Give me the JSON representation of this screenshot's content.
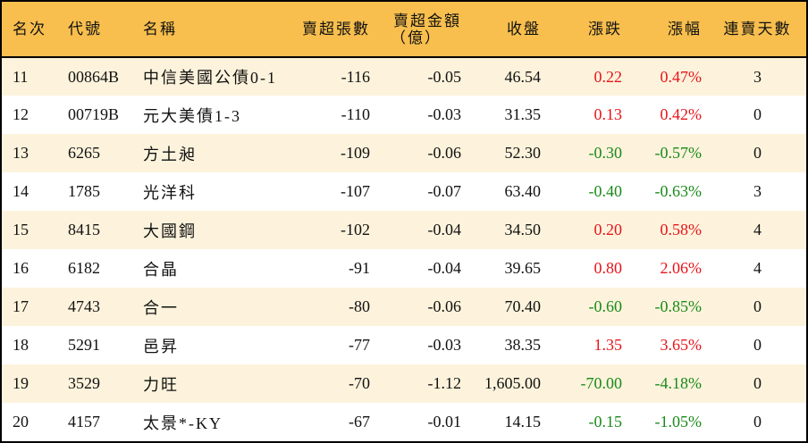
{
  "table": {
    "headers": {
      "rank": "名次",
      "code": "代號",
      "name": "名稱",
      "net_sell_volume": "賣超張數",
      "net_sell_amount_line1": "賣超金額",
      "net_sell_amount_line2": "（億）",
      "close": "收盤",
      "change": "漲跌",
      "change_pct": "漲幅",
      "consecutive_days": "連賣天數"
    },
    "colors": {
      "up": "#E8141B",
      "down": "#1A8A1A",
      "header_bg": "#F8BF4E",
      "row_alt_bg": "#FDF3DC"
    },
    "rows": [
      {
        "rank": "11",
        "code": "00864B",
        "name": "中信美國公債0-1",
        "volume": "-116",
        "amount": "-0.05",
        "close": "46.54",
        "change": "0.22",
        "pct": "0.47%",
        "days": "3",
        "dir": "up"
      },
      {
        "rank": "12",
        "code": "00719B",
        "name": "元大美債1-3",
        "volume": "-110",
        "amount": "-0.03",
        "close": "31.35",
        "change": "0.13",
        "pct": "0.42%",
        "days": "0",
        "dir": "up"
      },
      {
        "rank": "13",
        "code": "6265",
        "name": "方土昶",
        "volume": "-109",
        "amount": "-0.06",
        "close": "52.30",
        "change": "-0.30",
        "pct": "-0.57%",
        "days": "0",
        "dir": "down"
      },
      {
        "rank": "14",
        "code": "1785",
        "name": "光洋科",
        "volume": "-107",
        "amount": "-0.07",
        "close": "63.40",
        "change": "-0.40",
        "pct": "-0.63%",
        "days": "3",
        "dir": "down"
      },
      {
        "rank": "15",
        "code": "8415",
        "name": "大國鋼",
        "volume": "-102",
        "amount": "-0.04",
        "close": "34.50",
        "change": "0.20",
        "pct": "0.58%",
        "days": "4",
        "dir": "up"
      },
      {
        "rank": "16",
        "code": "6182",
        "name": "合晶",
        "volume": "-91",
        "amount": "-0.04",
        "close": "39.65",
        "change": "0.80",
        "pct": "2.06%",
        "days": "4",
        "dir": "up"
      },
      {
        "rank": "17",
        "code": "4743",
        "name": "合一",
        "volume": "-80",
        "amount": "-0.06",
        "close": "70.40",
        "change": "-0.60",
        "pct": "-0.85%",
        "days": "0",
        "dir": "down"
      },
      {
        "rank": "18",
        "code": "5291",
        "name": "邑昇",
        "volume": "-77",
        "amount": "-0.03",
        "close": "38.35",
        "change": "1.35",
        "pct": "3.65%",
        "days": "0",
        "dir": "up"
      },
      {
        "rank": "19",
        "code": "3529",
        "name": "力旺",
        "volume": "-70",
        "amount": "-1.12",
        "close": "1,605.00",
        "change": "-70.00",
        "pct": "-4.18%",
        "days": "0",
        "dir": "down"
      },
      {
        "rank": "20",
        "code": "4157",
        "name": "太景*-KY",
        "volume": "-67",
        "amount": "-0.01",
        "close": "14.15",
        "change": "-0.15",
        "pct": "-1.05%",
        "days": "0",
        "dir": "down"
      }
    ]
  }
}
